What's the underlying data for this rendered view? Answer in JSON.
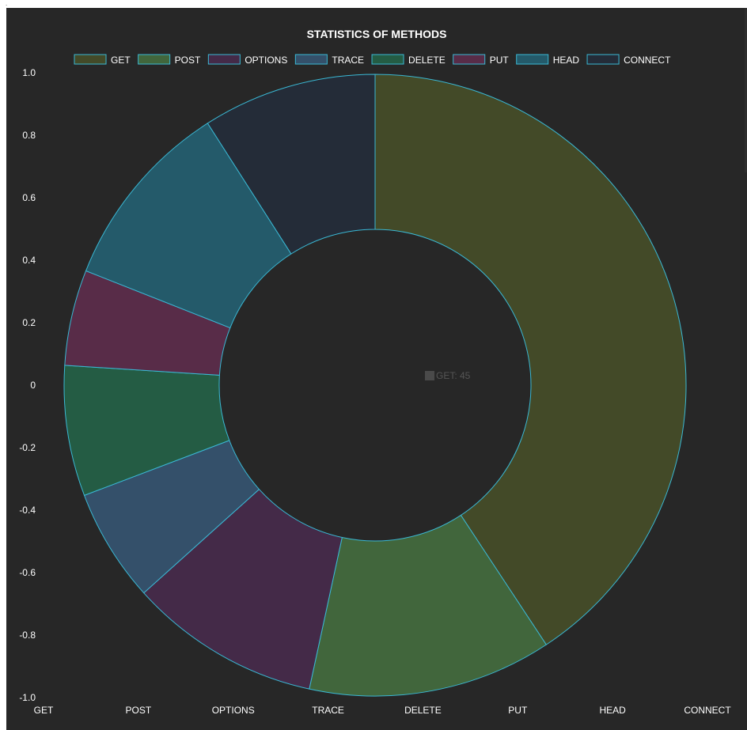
{
  "chart_data": {
    "type": "pie",
    "title": "STATISTICS OF METHODS",
    "categories": [
      "GET",
      "POST",
      "OPTIONS",
      "TRACE",
      "DELETE",
      "PUT",
      "HEAD",
      "CONNECT"
    ],
    "values": [
      45,
      14,
      11,
      6.5,
      7.5,
      5.5,
      11,
      10
    ],
    "colors": [
      "#434a28",
      "#41663c",
      "#442a48",
      "#34506a",
      "#245c44",
      "#582c48",
      "#245a6a",
      "#242c38"
    ],
    "border_color": "#3ab8d4",
    "donut": true,
    "legend_position": "top",
    "y_ticks": [
      "1.0",
      "0.8",
      "0.6",
      "0.4",
      "0.2",
      "0",
      "-0.2",
      "-0.4",
      "-0.6",
      "-0.8",
      "-1.0"
    ],
    "x_ticks": [
      "GET",
      "POST",
      "OPTIONS",
      "TRACE",
      "DELETE",
      "PUT",
      "HEAD",
      "CONNECT"
    ],
    "center_label": "GET: 45",
    "center_swatch_color": "#4a4a4a"
  }
}
